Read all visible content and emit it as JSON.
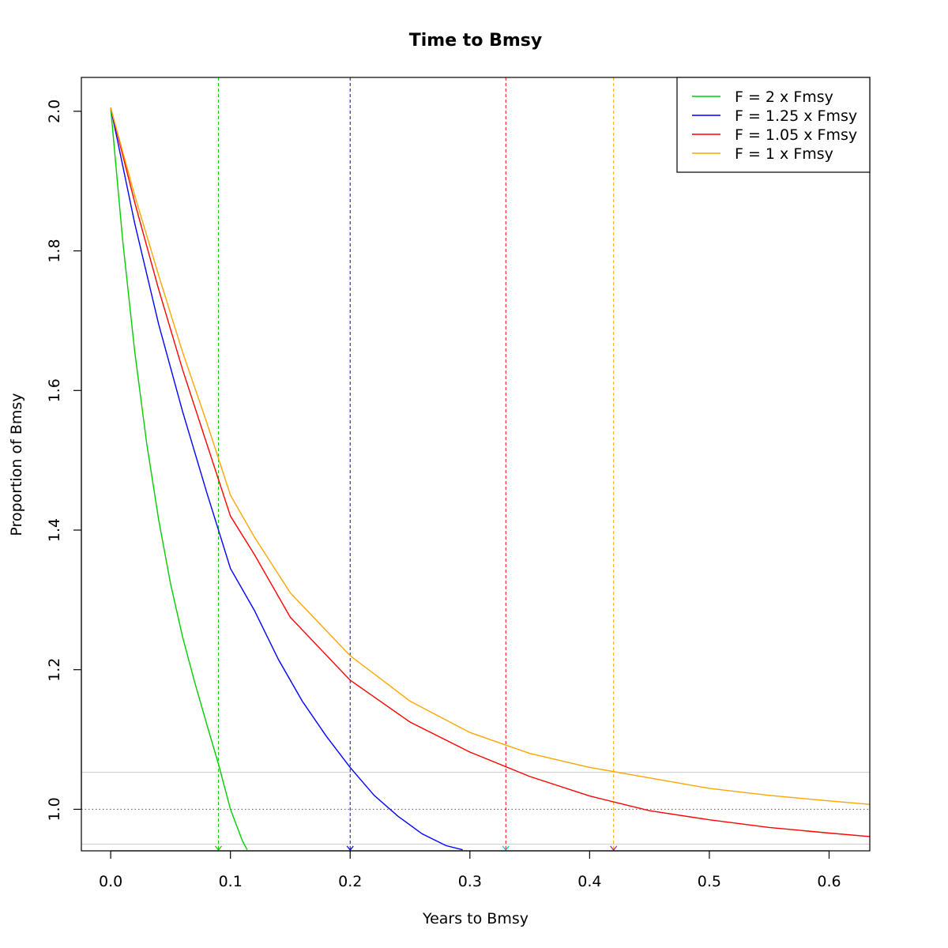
{
  "chart_data": {
    "type": "line",
    "title": "Time to Bmsy",
    "xlabel": "Years to Bmsy",
    "ylabel": "Proportion of Bmsy",
    "xlim": [
      -0.0245,
      0.634
    ],
    "ylim": [
      0.9405,
      2.0485
    ],
    "xticks": [
      "0.0",
      "0.1",
      "0.2",
      "0.3",
      "0.4",
      "0.5",
      "0.6"
    ],
    "yticks": [
      "1.0",
      "1.2",
      "1.4",
      "1.6",
      "1.8",
      "2.0"
    ],
    "grid": false,
    "legend_position": "top-right",
    "reference_lines": {
      "horizontal": [
        {
          "y": 1.0,
          "style": "dotted",
          "color": "#555555"
        },
        {
          "y": 1.053,
          "style": "solid",
          "color": "#cccccc"
        },
        {
          "y": 0.95,
          "style": "solid",
          "color": "#cccccc"
        }
      ]
    },
    "series": [
      {
        "name": "F = 2 x Fmsy",
        "color": "#00cd00",
        "marker_x": 0.09,
        "x": [
          0.0,
          0.01,
          0.02,
          0.03,
          0.04,
          0.05,
          0.06,
          0.07,
          0.08,
          0.09,
          0.1,
          0.11,
          0.114
        ],
        "y": [
          2.005,
          1.815,
          1.657,
          1.525,
          1.415,
          1.323,
          1.247,
          1.183,
          1.123,
          1.065,
          1.0,
          0.955,
          0.942
        ]
      },
      {
        "name": "F = 1.25 x Fmsy",
        "color": "#0000ff",
        "marker_x": 0.2,
        "x": [
          0.0,
          0.02,
          0.04,
          0.06,
          0.08,
          0.1,
          0.12,
          0.14,
          0.16,
          0.18,
          0.2,
          0.22,
          0.24,
          0.26,
          0.28,
          0.294
        ],
        "y": [
          2.005,
          1.84,
          1.695,
          1.57,
          1.455,
          1.345,
          1.285,
          1.215,
          1.155,
          1.105,
          1.06,
          1.02,
          0.99,
          0.965,
          0.948,
          0.942
        ]
      },
      {
        "name": "F = 1.05 x Fmsy",
        "color": "#ff0000",
        "marker_x": 0.33,
        "x": [
          0.0,
          0.02,
          0.04,
          0.06,
          0.08,
          0.1,
          0.12,
          0.15,
          0.2,
          0.25,
          0.3,
          0.35,
          0.4,
          0.45,
          0.5,
          0.55,
          0.6,
          0.634
        ],
        "y": [
          2.005,
          1.87,
          1.745,
          1.63,
          1.525,
          1.42,
          1.365,
          1.275,
          1.185,
          1.125,
          1.082,
          1.047,
          1.019,
          0.998,
          0.985,
          0.974,
          0.966,
          0.961
        ]
      },
      {
        "name": "F = 1 x Fmsy",
        "color": "#ffa500",
        "marker_x": 0.42,
        "x": [
          0.0,
          0.02,
          0.04,
          0.06,
          0.08,
          0.1,
          0.12,
          0.15,
          0.2,
          0.25,
          0.3,
          0.35,
          0.4,
          0.45,
          0.5,
          0.55,
          0.6,
          0.634
        ],
        "y": [
          2.005,
          1.88,
          1.765,
          1.655,
          1.555,
          1.45,
          1.39,
          1.31,
          1.22,
          1.155,
          1.11,
          1.08,
          1.06,
          1.045,
          1.03,
          1.02,
          1.012,
          1.007
        ]
      }
    ]
  }
}
